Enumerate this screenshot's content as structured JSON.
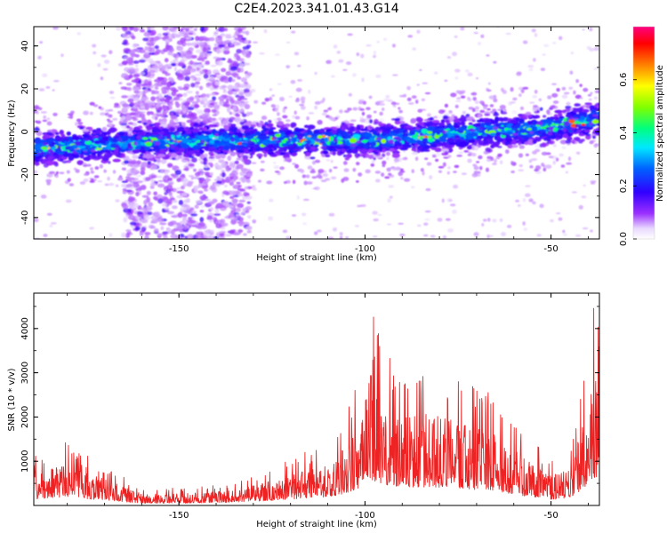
{
  "title": "C2E4.2023.341.01.43.G14",
  "chart_data": [
    {
      "type": "heatmap",
      "xlabel": "Height of straight line (km)",
      "ylabel": "Frequency (Hz)",
      "xlim": [
        -189,
        -37
      ],
      "ylim": [
        -50,
        49
      ],
      "xticks": [
        -150,
        -100,
        -50
      ],
      "yticks": [
        -40,
        -20,
        0,
        20,
        40
      ],
      "colorbar": {
        "label": "Normalized spectral amplitude",
        "range": [
          0,
          0.8
        ],
        "ticks": [
          "0.0",
          "0.2",
          "0.4",
          "0.6"
        ]
      },
      "band_center": [
        {
          "x": -189,
          "y": -8
        },
        {
          "x": -150,
          "y": -4
        },
        {
          "x": -100,
          "y": -4
        },
        {
          "x": -50,
          "y": 2
        },
        {
          "x": -37,
          "y": 6
        }
      ],
      "noise_columns": [
        {
          "x_min": -165,
          "x_max": -140
        },
        {
          "x_min": -140,
          "x_max": -131
        }
      ],
      "grid": false
    },
    {
      "type": "line",
      "xlabel": "Height of straight line (km)",
      "ylabel": "SNR (10 * v/v)",
      "xlim": [
        -189,
        -37
      ],
      "ylim": [
        0,
        4800
      ],
      "xticks": [
        -150,
        -100,
        -50
      ],
      "yticks": [
        1000,
        2000,
        3000,
        4000
      ],
      "envelope": [
        {
          "x": -189,
          "y": 950
        },
        {
          "x": -180,
          "y": 1300
        },
        {
          "x": -175,
          "y": 1000
        },
        {
          "x": -170,
          "y": 800
        },
        {
          "x": -160,
          "y": 350
        },
        {
          "x": -150,
          "y": 350
        },
        {
          "x": -135,
          "y": 450
        },
        {
          "x": -125,
          "y": 750
        },
        {
          "x": -115,
          "y": 1100
        },
        {
          "x": -108,
          "y": 1400
        },
        {
          "x": -102,
          "y": 2400
        },
        {
          "x": -100,
          "y": 4400
        },
        {
          "x": -95,
          "y": 3000
        },
        {
          "x": -88,
          "y": 2800
        },
        {
          "x": -80,
          "y": 2700
        },
        {
          "x": -75,
          "y": 2500
        },
        {
          "x": -65,
          "y": 2200
        },
        {
          "x": -58,
          "y": 1500
        },
        {
          "x": -50,
          "y": 900
        },
        {
          "x": -45,
          "y": 1100
        },
        {
          "x": -41,
          "y": 2700
        },
        {
          "x": -38,
          "y": 4400
        },
        {
          "x": -37,
          "y": 3500
        }
      ],
      "color": "#ee2222",
      "grid": false
    }
  ]
}
